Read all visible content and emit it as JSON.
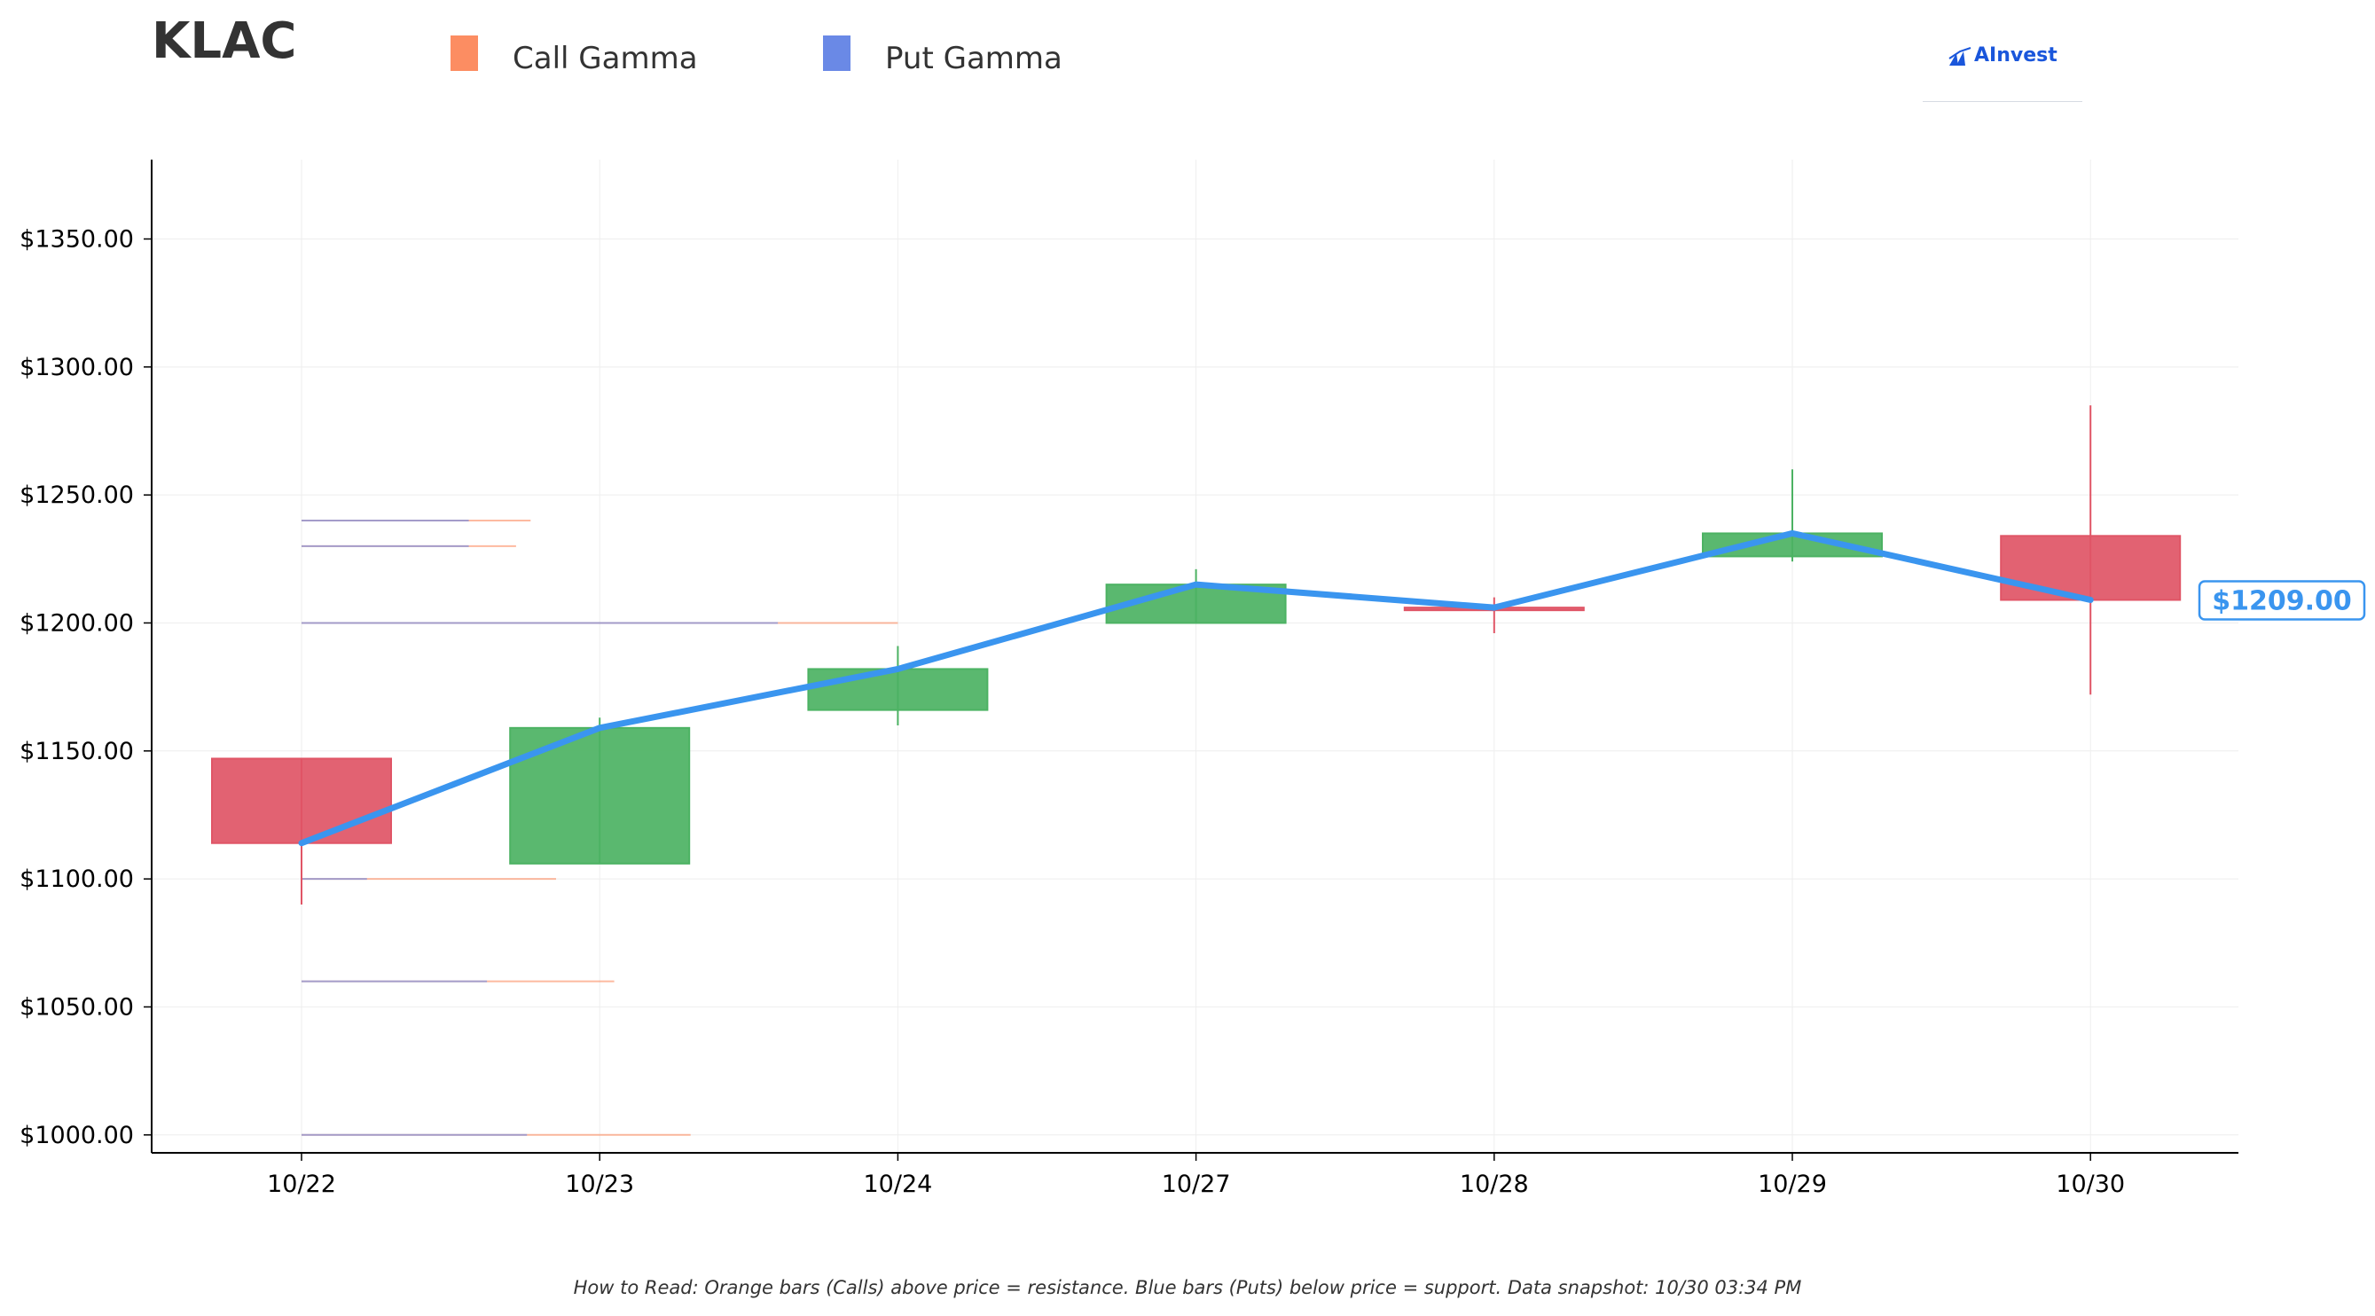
{
  "header": {
    "ticker": "KLAC",
    "brand": "AInvest"
  },
  "legend": [
    {
      "label": "Call Gamma",
      "color": "#fc8d62"
    },
    {
      "label": "Put Gamma",
      "color": "#6a89e6"
    }
  ],
  "footnote": "How to Read: Orange bars (Calls) above price = resistance. Blue bars (Puts) below price = support. Data snapshot: 10/30 03:34 PM",
  "chart_data": {
    "type": "candlestick",
    "categories": [
      "10/22",
      "10/23",
      "10/24",
      "10/27",
      "10/28",
      "10/29",
      "10/30"
    ],
    "ylim": [
      993,
      1381
    ],
    "yticks": [
      1000,
      1050,
      1100,
      1150,
      1200,
      1250,
      1300,
      1350
    ],
    "ytick_labels": [
      "$1000.00",
      "$1050.00",
      "$1100.00",
      "$1150.00",
      "$1200.00",
      "$1250.00",
      "$1300.00",
      "$1350.00"
    ],
    "grid": true,
    "candles": [
      {
        "date": "10/22",
        "open": 1147,
        "high": 1147,
        "low": 1090,
        "close": 1114,
        "direction": "down"
      },
      {
        "date": "10/23",
        "open": 1106,
        "high": 1163,
        "low": 1106,
        "close": 1159,
        "direction": "up"
      },
      {
        "date": "10/24",
        "open": 1166,
        "high": 1191,
        "low": 1160,
        "close": 1182,
        "direction": "up"
      },
      {
        "date": "10/27",
        "open": 1200,
        "high": 1221,
        "low": 1200,
        "close": 1215,
        "direction": "up"
      },
      {
        "date": "10/28",
        "open": 1206,
        "high": 1210,
        "low": 1196,
        "close": 1206,
        "direction": "down"
      },
      {
        "date": "10/29",
        "open": 1226,
        "high": 1260,
        "low": 1224,
        "close": 1235,
        "direction": "up"
      },
      {
        "date": "10/30",
        "open": 1234,
        "high": 1285,
        "low": 1172,
        "close": 1209,
        "direction": "down"
      }
    ],
    "price_line": [
      1114,
      1159,
      1182,
      1215,
      1206,
      1235,
      1209
    ],
    "gamma_levels": [
      {
        "strike": 1240,
        "call": 6.3,
        "put": 4.6
      },
      {
        "strike": 1230,
        "call": 5.9,
        "put": 4.6
      },
      {
        "strike": 1200,
        "call": 16.4,
        "put": 13.1
      },
      {
        "strike": 1100,
        "call": 7.0,
        "put": 1.8
      },
      {
        "strike": 1060,
        "call": 8.6,
        "put": 5.1
      },
      {
        "strike": 1000,
        "call": 10.7,
        "put": 6.2
      }
    ],
    "last_price_label": "$1209.00",
    "colors": {
      "up": "#4cb263",
      "down": "#e05566",
      "price_line": "#3a95ef",
      "call": "#fc8d62",
      "put": "#6a89e6",
      "grid": "#eeeeee"
    }
  }
}
